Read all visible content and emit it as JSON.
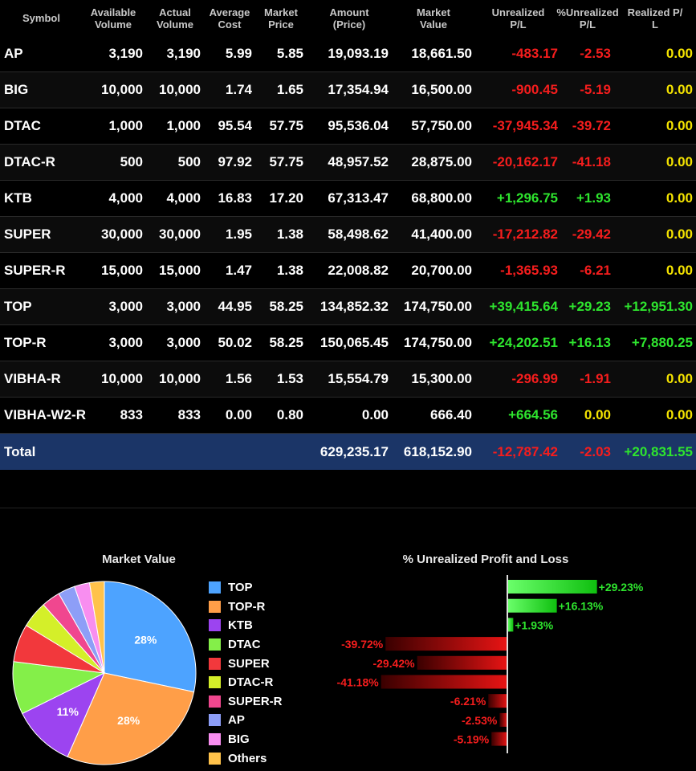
{
  "table": {
    "headers": [
      "Symbol",
      "Available\nVolume",
      "Actual\nVolume",
      "Average\nCost",
      "Market\nPrice",
      "Amount\n(Price)",
      "Market\nValue",
      "Unrealized\nP/L",
      "%Unrealized\nP/L",
      "Realized P/\nL"
    ],
    "rows": [
      {
        "symbol": "AP",
        "available": "3,190",
        "actual": "3,190",
        "avg_cost": "5.99",
        "price": "5.85",
        "amount": "19,093.19",
        "market_value": "18,661.50",
        "upl": "-483.17",
        "upl_pct": "-2.53",
        "realized": "0.00",
        "upl_sign": "neg",
        "pct_sign": "neg",
        "real_sign": "zero"
      },
      {
        "symbol": "BIG",
        "available": "10,000",
        "actual": "10,000",
        "avg_cost": "1.74",
        "price": "1.65",
        "amount": "17,354.94",
        "market_value": "16,500.00",
        "upl": "-900.45",
        "upl_pct": "-5.19",
        "realized": "0.00",
        "upl_sign": "neg",
        "pct_sign": "neg",
        "real_sign": "zero"
      },
      {
        "symbol": "DTAC",
        "available": "1,000",
        "actual": "1,000",
        "avg_cost": "95.54",
        "price": "57.75",
        "amount": "95,536.04",
        "market_value": "57,750.00",
        "upl": "-37,945.34",
        "upl_pct": "-39.72",
        "realized": "0.00",
        "upl_sign": "neg",
        "pct_sign": "neg",
        "real_sign": "zero"
      },
      {
        "symbol": "DTAC-R",
        "available": "500",
        "actual": "500",
        "avg_cost": "97.92",
        "price": "57.75",
        "amount": "48,957.52",
        "market_value": "28,875.00",
        "upl": "-20,162.17",
        "upl_pct": "-41.18",
        "realized": "0.00",
        "upl_sign": "neg",
        "pct_sign": "neg",
        "real_sign": "zero"
      },
      {
        "symbol": "KTB",
        "available": "4,000",
        "actual": "4,000",
        "avg_cost": "16.83",
        "price": "17.20",
        "amount": "67,313.47",
        "market_value": "68,800.00",
        "upl": "+1,296.75",
        "upl_pct": "+1.93",
        "realized": "0.00",
        "upl_sign": "pos",
        "pct_sign": "pos",
        "real_sign": "zero"
      },
      {
        "symbol": "SUPER",
        "available": "30,000",
        "actual": "30,000",
        "avg_cost": "1.95",
        "price": "1.38",
        "amount": "58,498.62",
        "market_value": "41,400.00",
        "upl": "-17,212.82",
        "upl_pct": "-29.42",
        "realized": "0.00",
        "upl_sign": "neg",
        "pct_sign": "neg",
        "real_sign": "zero"
      },
      {
        "symbol": "SUPER-R",
        "available": "15,000",
        "actual": "15,000",
        "avg_cost": "1.47",
        "price": "1.38",
        "amount": "22,008.82",
        "market_value": "20,700.00",
        "upl": "-1,365.93",
        "upl_pct": "-6.21",
        "realized": "0.00",
        "upl_sign": "neg",
        "pct_sign": "neg",
        "real_sign": "zero"
      },
      {
        "symbol": "TOP",
        "available": "3,000",
        "actual": "3,000",
        "avg_cost": "44.95",
        "price": "58.25",
        "amount": "134,852.32",
        "market_value": "174,750.00",
        "upl": "+39,415.64",
        "upl_pct": "+29.23",
        "realized": "+12,951.30",
        "upl_sign": "pos",
        "pct_sign": "pos",
        "real_sign": "pos"
      },
      {
        "symbol": "TOP-R",
        "available": "3,000",
        "actual": "3,000",
        "avg_cost": "50.02",
        "price": "58.25",
        "amount": "150,065.45",
        "market_value": "174,750.00",
        "upl": "+24,202.51",
        "upl_pct": "+16.13",
        "realized": "+7,880.25",
        "upl_sign": "pos",
        "pct_sign": "pos",
        "real_sign": "pos"
      },
      {
        "symbol": "VIBHA-R",
        "available": "10,000",
        "actual": "10,000",
        "avg_cost": "1.56",
        "price": "1.53",
        "amount": "15,554.79",
        "market_value": "15,300.00",
        "upl": "-296.99",
        "upl_pct": "-1.91",
        "realized": "0.00",
        "upl_sign": "neg",
        "pct_sign": "neg",
        "real_sign": "zero"
      },
      {
        "symbol": "VIBHA-W2-R",
        "available": "833",
        "actual": "833",
        "avg_cost": "0.00",
        "price": "0.80",
        "amount": "0.00",
        "market_value": "666.40",
        "upl": "+664.56",
        "upl_pct": "0.00",
        "realized": "0.00",
        "upl_sign": "pos",
        "pct_sign": "zero",
        "real_sign": "zero"
      }
    ],
    "total": {
      "label": "Total",
      "amount": "629,235.17",
      "market_value": "618,152.90",
      "upl": "-12,787.42",
      "upl_pct": "-2.03",
      "realized": "+20,831.55"
    }
  },
  "colors": {
    "positive": "#2ee52e",
    "negative": "#f51d1d",
    "zero": "#f4e300",
    "total_bg": "#1b3567"
  },
  "chart_data": [
    {
      "type": "pie",
      "title": "Market Value",
      "legend_placement": "right",
      "slices": [
        {
          "label": "TOP",
          "value": 28.3,
          "color": "#4da3ff",
          "data_label": "28%"
        },
        {
          "label": "TOP-R",
          "value": 28.3,
          "color": "#ff9e48",
          "data_label": "28%"
        },
        {
          "label": "KTB",
          "value": 11.1,
          "color": "#9c44f0",
          "data_label": "11%"
        },
        {
          "label": "DTAC",
          "value": 9.3,
          "color": "#84ef49",
          "data_label": ""
        },
        {
          "label": "SUPER",
          "value": 6.7,
          "color": "#f2383c",
          "data_label": ""
        },
        {
          "label": "DTAC-R",
          "value": 4.7,
          "color": "#d4ef29",
          "data_label": ""
        },
        {
          "label": "SUPER-R",
          "value": 3.3,
          "color": "#f0478f",
          "data_label": ""
        },
        {
          "label": "AP",
          "value": 3.0,
          "color": "#8d9ef7",
          "data_label": ""
        },
        {
          "label": "BIG",
          "value": 2.7,
          "color": "#f88ef0",
          "data_label": ""
        },
        {
          "label": "Others",
          "value": 2.6,
          "color": "#ffc24a",
          "data_label": ""
        }
      ]
    },
    {
      "type": "bar",
      "orientation": "horizontal",
      "title": "% Unrealized Profit and Loss",
      "categories": [
        "TOP",
        "TOP-R",
        "KTB",
        "DTAC",
        "SUPER",
        "DTAC-R",
        "SUPER-R",
        "AP",
        "BIG"
      ],
      "values": [
        29.23,
        16.13,
        1.93,
        -39.72,
        -29.42,
        -41.18,
        -6.21,
        -2.53,
        -5.19
      ],
      "data_labels": [
        "+29.23%",
        "+16.13%",
        "+1.93%",
        "-39.72%",
        "-29.42%",
        "-41.18%",
        "-6.21%",
        "-2.53%",
        "-5.19%"
      ],
      "positive_color": "#2ee52e",
      "negative_color": "#f51d1d"
    }
  ]
}
